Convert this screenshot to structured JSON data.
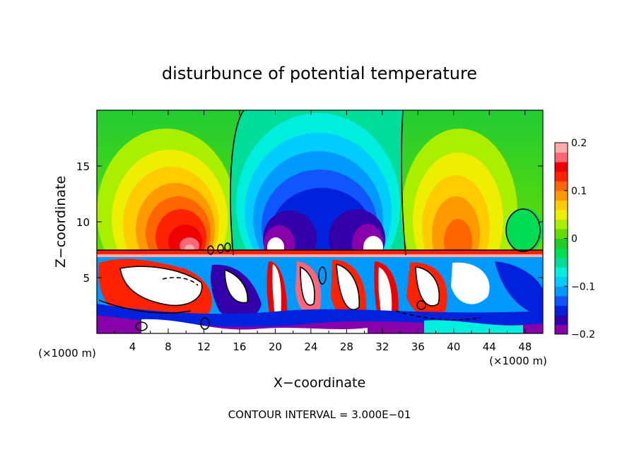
{
  "chart_data": {
    "type": "heatmap",
    "title": "disturbunce of potential temperature",
    "xlabel": "X−coordinate",
    "ylabel": "Z−coordinate",
    "x_unit_left": "(×1000 m)",
    "x_unit_right": "(×1000 m)",
    "xlim": [
      0,
      50
    ],
    "ylim": [
      0,
      20
    ],
    "x_ticks": [
      4,
      8,
      12,
      16,
      20,
      24,
      28,
      32,
      36,
      40,
      44,
      48
    ],
    "x_tick_labels": [
      "4",
      "8",
      "12",
      "16",
      "20",
      "24",
      "28",
      "32",
      "36",
      "40",
      "44",
      "48"
    ],
    "y_ticks": [
      5,
      10,
      15
    ],
    "y_tick_labels": [
      "5",
      "10",
      "15"
    ],
    "colorbar": {
      "range": [
        -0.2,
        0.2
      ],
      "ticks": [
        0.2,
        0.1,
        0,
        -0.1,
        -0.2
      ],
      "tick_labels": [
        "0.2",
        "0.1",
        "0",
        "−0.1",
        "−0.2"
      ],
      "colors": [
        "#8800aa",
        "#3300aa",
        "#0022dd",
        "#1155ff",
        "#0099ff",
        "#00ccff",
        "#00eedd",
        "#00dd99",
        "#00dd55",
        "#22cc22",
        "#66dd00",
        "#aaee00",
        "#eeee00",
        "#ffcc00",
        "#ff9900",
        "#ff6600",
        "#ff2200",
        "#ee0000",
        "#ff6677",
        "#ffaaaa"
      ]
    },
    "annotation": "CONTOUR INTERVAL = 3.000E−01"
  }
}
